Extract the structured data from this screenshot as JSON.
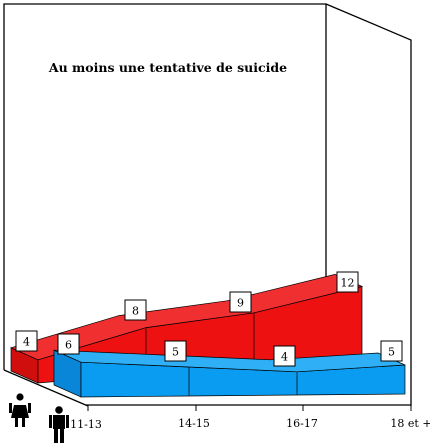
{
  "chart_data": {
    "type": "area",
    "title": "Au moins une tentative de suicide",
    "categories": [
      "11-13",
      "14-15",
      "16-17",
      "18 et +"
    ],
    "series": [
      {
        "values": [
          4,
          8,
          9,
          12
        ],
        "color": "#ee1111",
        "icon": "female-icon"
      },
      {
        "values": [
          6,
          5,
          4,
          5
        ],
        "color": "#0a9cf0",
        "icon": "male-icon"
      }
    ],
    "xlabel": "",
    "ylabel": "",
    "style": "3d-perspective",
    "grid": false,
    "legend": "none"
  }
}
